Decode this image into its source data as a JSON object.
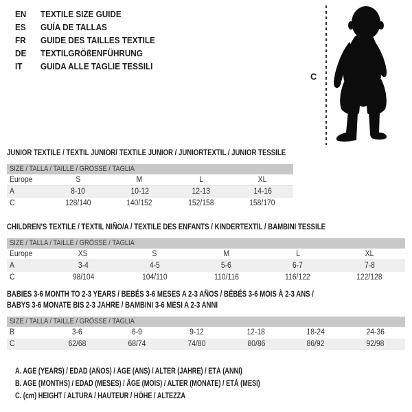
{
  "language_header": {
    "items": [
      {
        "code": "EN",
        "label": "TEXTILE SIZE GUIDE"
      },
      {
        "code": "ES",
        "label": "GUÍA DE TALLAS"
      },
      {
        "code": "FR",
        "label": "GUIDE DES TAILLES TEXTILE"
      },
      {
        "code": "DE",
        "label": "TEXTILGRÖßENFÜHRUNG"
      },
      {
        "code": "IT",
        "label": "GUIDA ALLE TAGLIE TESSILI"
      }
    ]
  },
  "figure": {
    "marker_label": "C",
    "icon": "baby-silhouette-icon",
    "silhouette_color": "#0c0c0c",
    "dash_color": "#2e2e2e"
  },
  "colors": {
    "bar_bg": "#c8c8c8",
    "row_shaded_bg": "#efefef",
    "row_divider": "#d8d8d8"
  },
  "size_tables": [
    {
      "id": "junior",
      "title_lines": [
        "JUNIOR TEXTILE / TEXTIL JUNIOR/ TEXTILE JUNIOR / JUNIORTEXTIL / JUNIOR TESSILE"
      ],
      "size_header": "SIZE / TALLA / TAILLE / GRÖSSE / TAGLIA",
      "rows": [
        {
          "label": "Europe",
          "values": [
            "S",
            "M",
            "L",
            "XL"
          ],
          "shaded": false,
          "divider": true
        },
        {
          "label": "A",
          "values": [
            "8-10",
            "10-12",
            "12-13",
            "14-16"
          ],
          "shaded": true,
          "divider": false
        },
        {
          "label": "C",
          "values": [
            "128/140",
            "140/152",
            "152/158",
            "158/170"
          ],
          "shaded": false,
          "divider": false
        }
      ]
    },
    {
      "id": "children",
      "title_lines": [
        "CHILDREN'S TEXTILE / TEXTIL NIÑO/A / TEXTILE DES ENFANTS / KINDERTEXTIL / BAMBINI TESSILE"
      ],
      "size_header": "SIZE / TALLA / TAILLE / GRÖSSE / TAGLIA",
      "rows": [
        {
          "label": "Europe",
          "values": [
            "XS",
            "S",
            "M",
            "L",
            "XL"
          ],
          "shaded": false,
          "divider": true
        },
        {
          "label": "A",
          "values": [
            "3-4",
            "4-5",
            "5-6",
            "6-7",
            "7-8"
          ],
          "shaded": true,
          "divider": false
        },
        {
          "label": "C",
          "values": [
            "98/104",
            "104/110",
            "110/116",
            "116/122",
            "122/128"
          ],
          "shaded": false,
          "divider": false
        }
      ]
    },
    {
      "id": "babies",
      "title_lines": [
        "BABIES 3-6 MONTH TO 2-3 YEARS / BEBÉS 3-6 MESES A 2-3 AÑOS / BÉBÉS 3-6 MOIS À 2-3 ANS /",
        "BABYS 3-6 MONATE BIS 2-3 JAHRE / BAMBINI 3-6 MESI A 2-3 ANNI"
      ],
      "size_header": "SIZE / TALLA / TAILLE / GRÖSSE / TAGLIA",
      "rows": [
        {
          "label": "B",
          "values": [
            "3-6",
            "6-9",
            "9-12",
            "12-18",
            "18-24",
            "24-36"
          ],
          "shaded": false,
          "divider": false
        },
        {
          "label": "C",
          "values": [
            "62/68",
            "68/74",
            "74/80",
            "80/86",
            "86/92",
            "92/98"
          ],
          "shaded": true,
          "divider": false
        }
      ]
    }
  ],
  "legend": {
    "lines": [
      "A. AGE (YEARS) / EDAD (AÑOS) / ÂGE (ANS) / ALTER (JAHRE) / ETÀ (ANNI)",
      "B. AGE (MONTHS) / EDAD (MESES) / ÂGE (MOIS) / ALTER (MONATE) / ETÀ (MESI)",
      "C. (cm) HEIGHT / ALTURA / HAUTEUR / HÖHE / ALTEZZA"
    ]
  }
}
